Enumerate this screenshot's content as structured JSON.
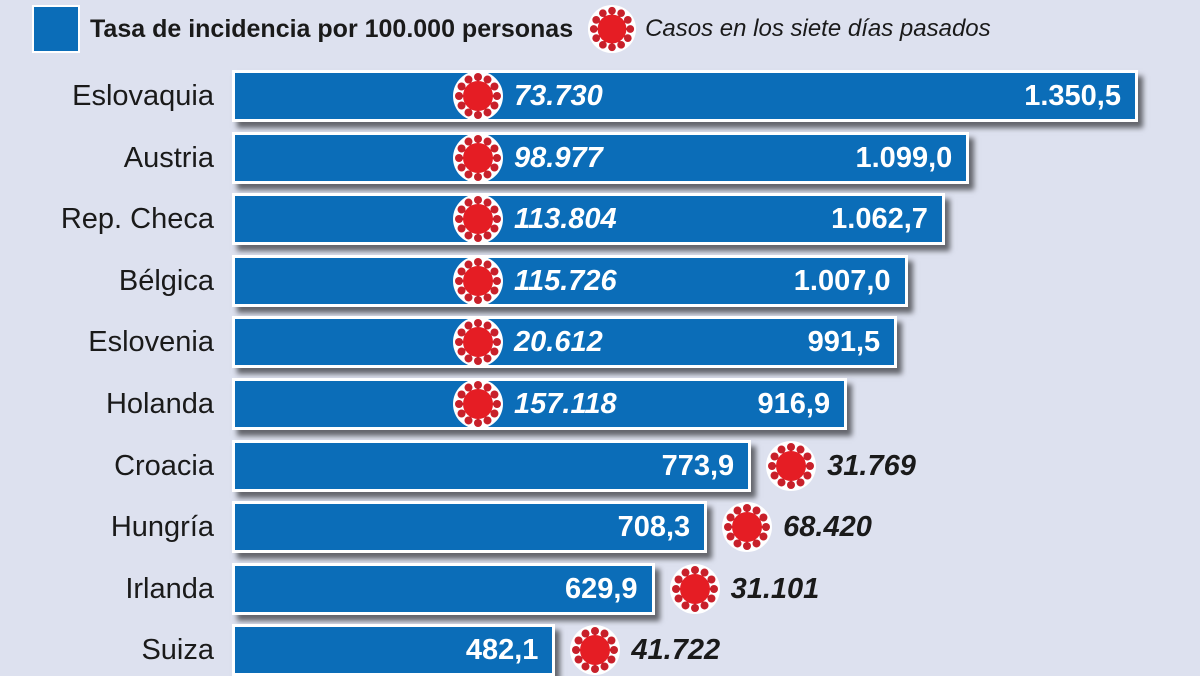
{
  "chart_data": {
    "type": "bar",
    "orientation": "horizontal",
    "legend": [
      {
        "label": "Tasa de incidencia por 100.000 personas",
        "symbol": "blue-square",
        "color": "#0b6db8"
      },
      {
        "label": "Casos en los siete días pasados",
        "symbol": "virus-icon",
        "color": "#e51d24"
      }
    ],
    "legend_placement": "top",
    "categories": [
      "Eslovaquia",
      "Austria",
      "Rep. Checa",
      "Bélgica",
      "Eslovenia",
      "Holanda",
      "Croacia",
      "Hungría",
      "Irlanda",
      "Suiza"
    ],
    "series": [
      {
        "name": "Tasa de incidencia por 100.000 personas",
        "values": [
          1350.5,
          1099.0,
          1062.7,
          1007.0,
          991.5,
          916.9,
          773.9,
          708.3,
          629.9,
          482.1
        ],
        "labels": [
          "1.350,5",
          "1.099,0",
          "1.062,7",
          "1.007,0",
          "991,5",
          "916,9",
          "773,9",
          "708,3",
          "629,9",
          "482,1"
        ]
      },
      {
        "name": "Casos en los siete días pasados",
        "values": [
          73730,
          98977,
          113804,
          115726,
          20612,
          157118,
          31769,
          68420,
          31101,
          41722
        ],
        "labels": [
          "73.730",
          "98.977",
          "113.804",
          "115.726",
          "20.612",
          "157.118",
          "31.769",
          "68.420",
          "31.101",
          "41.722"
        ]
      }
    ],
    "grid": false,
    "xlim": [
      0,
      1350.5
    ]
  }
}
